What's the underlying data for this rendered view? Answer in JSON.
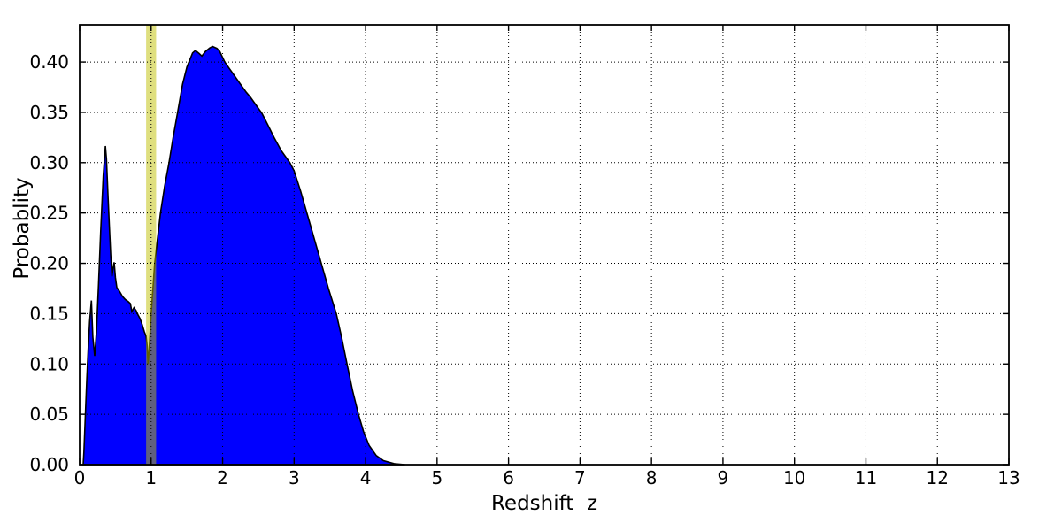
{
  "figure": {
    "background": "#ffffff",
    "kind": "matplotlib-style probability density plot"
  },
  "chart_data": {
    "type": "area",
    "title": "",
    "xlabel": "Redshift  z",
    "ylabel": "Probablity",
    "xlim": [
      0,
      13
    ],
    "ylim": [
      0,
      0.437
    ],
    "xticks": [
      0,
      1,
      2,
      3,
      4,
      5,
      6,
      7,
      8,
      9,
      10,
      11,
      12,
      13
    ],
    "xtick_labels": [
      "0",
      "1",
      "2",
      "3",
      "4",
      "5",
      "6",
      "7",
      "8",
      "9",
      "10",
      "11",
      "12",
      "13"
    ],
    "yticks": [
      0.0,
      0.05,
      0.1,
      0.15,
      0.2,
      0.25,
      0.3,
      0.35,
      0.4
    ],
    "ytick_labels": [
      "0.00",
      "0.05",
      "0.10",
      "0.15",
      "0.20",
      "0.25",
      "0.30",
      "0.35",
      "0.40"
    ],
    "grid": {
      "on": true,
      "style": "dotted",
      "color": "#000000"
    },
    "legend": {
      "visible": false
    },
    "colors": {
      "fill": "#0000ff",
      "edge": "#000000",
      "band": "#bfbf00",
      "band_opacity": 0.5,
      "spine": "#000000",
      "text": "#000000"
    },
    "annotations": [
      {
        "type": "vspan",
        "x0": 0.93,
        "x1": 1.07,
        "color": "#bfbf00",
        "opacity": 0.5,
        "meaning": "highlighted redshift z=1 band"
      }
    ],
    "series": [
      {
        "name": "redshift probability density",
        "points": [
          [
            0.05,
            0.0
          ],
          [
            0.06,
            0.012
          ],
          [
            0.08,
            0.05
          ],
          [
            0.1,
            0.085
          ],
          [
            0.12,
            0.115
          ],
          [
            0.14,
            0.142
          ],
          [
            0.165,
            0.163
          ],
          [
            0.185,
            0.127
          ],
          [
            0.21,
            0.108
          ],
          [
            0.235,
            0.132
          ],
          [
            0.265,
            0.18
          ],
          [
            0.295,
            0.232
          ],
          [
            0.33,
            0.287
          ],
          [
            0.36,
            0.3165
          ],
          [
            0.375,
            0.304
          ],
          [
            0.395,
            0.27
          ],
          [
            0.415,
            0.238
          ],
          [
            0.435,
            0.208
          ],
          [
            0.452,
            0.187
          ],
          [
            0.47,
            0.197
          ],
          [
            0.483,
            0.201
          ],
          [
            0.5,
            0.186
          ],
          [
            0.52,
            0.176
          ],
          [
            0.56,
            0.172
          ],
          [
            0.6,
            0.167
          ],
          [
            0.64,
            0.164
          ],
          [
            0.68,
            0.162
          ],
          [
            0.71,
            0.16
          ],
          [
            0.73,
            0.152
          ],
          [
            0.76,
            0.156
          ],
          [
            0.79,
            0.153
          ],
          [
            0.815,
            0.149
          ],
          [
            0.845,
            0.145
          ],
          [
            0.875,
            0.139
          ],
          [
            0.905,
            0.132
          ],
          [
            0.93,
            0.1275
          ],
          [
            0.945,
            0.118
          ],
          [
            0.957,
            0.1
          ],
          [
            0.97,
            0.112
          ],
          [
            0.985,
            0.13
          ],
          [
            1.0,
            0.15
          ],
          [
            1.05,
            0.2
          ],
          [
            1.13,
            0.25
          ],
          [
            1.19,
            0.277
          ],
          [
            1.25,
            0.3
          ],
          [
            1.31,
            0.326
          ],
          [
            1.37,
            0.35
          ],
          [
            1.44,
            0.378
          ],
          [
            1.5,
            0.395
          ],
          [
            1.54,
            0.402
          ],
          [
            1.58,
            0.409
          ],
          [
            1.62,
            0.4115
          ],
          [
            1.67,
            0.4085
          ],
          [
            1.71,
            0.406
          ],
          [
            1.76,
            0.4105
          ],
          [
            1.82,
            0.414
          ],
          [
            1.86,
            0.4155
          ],
          [
            1.92,
            0.4135
          ],
          [
            1.96,
            0.4105
          ],
          [
            2.03,
            0.4
          ],
          [
            2.09,
            0.394
          ],
          [
            2.14,
            0.389
          ],
          [
            2.21,
            0.382
          ],
          [
            2.27,
            0.376
          ],
          [
            2.33,
            0.37
          ],
          [
            2.39,
            0.365
          ],
          [
            2.47,
            0.357
          ],
          [
            2.55,
            0.349
          ],
          [
            2.63,
            0.338
          ],
          [
            2.72,
            0.325
          ],
          [
            2.82,
            0.312
          ],
          [
            2.94,
            0.3
          ],
          [
            3.0,
            0.292
          ],
          [
            3.09,
            0.272
          ],
          [
            3.18,
            0.25
          ],
          [
            3.28,
            0.225
          ],
          [
            3.38,
            0.2
          ],
          [
            3.48,
            0.175
          ],
          [
            3.59,
            0.15
          ],
          [
            3.66,
            0.128
          ],
          [
            3.74,
            0.1
          ],
          [
            3.82,
            0.073
          ],
          [
            3.9,
            0.05
          ],
          [
            3.97,
            0.033
          ],
          [
            4.05,
            0.019
          ],
          [
            4.15,
            0.009
          ],
          [
            4.25,
            0.004
          ],
          [
            4.4,
            0.001
          ],
          [
            4.55,
            0.0
          ]
        ]
      }
    ]
  }
}
